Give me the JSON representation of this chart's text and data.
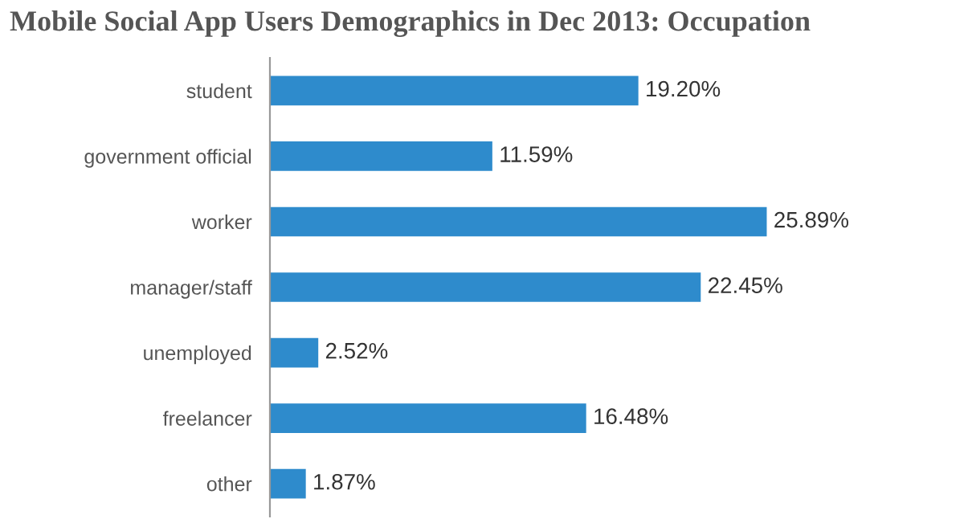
{
  "chart_data": {
    "type": "bar",
    "orientation": "horizontal",
    "title": "Mobile Social App Users Demographics in Dec 2013: Occupation",
    "categories": [
      "student",
      "government official",
      "worker",
      "manager/staff",
      "unemployed",
      "freelancer",
      "other"
    ],
    "values": [
      19.2,
      11.59,
      25.89,
      22.45,
      2.52,
      16.48,
      1.87
    ],
    "value_labels": [
      "19.20%",
      "11.59%",
      "25.89%",
      "22.45%",
      "2.52%",
      "16.48%",
      "1.87%"
    ],
    "color": "#2e8bcc",
    "grid": false
  }
}
